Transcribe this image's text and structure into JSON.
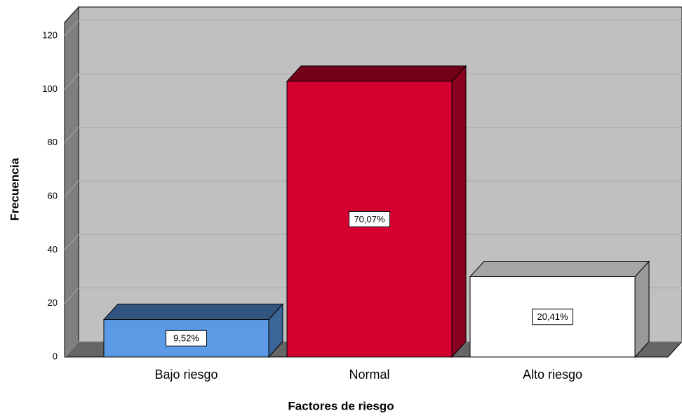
{
  "chart_data": {
    "type": "bar3d",
    "x_label": "Factores de riesgo",
    "y_label": "Frecuencia",
    "categories": [
      "Bajo riesgo",
      "Normal",
      "Alto riesgo"
    ],
    "values": [
      14,
      103,
      30
    ],
    "colors": [
      "#5b9be6",
      "#d4002f",
      "#ffffff"
    ],
    "percentages": {
      "values": [
        9.52,
        70.07,
        20.41
      ],
      "value_labels": [
        "9,52%",
        "70,07%",
        "20,41%"
      ]
    },
    "ylim": [
      0,
      125
    ],
    "yticks": [
      0,
      20,
      40,
      60,
      80,
      100,
      120
    ],
    "grid": true
  }
}
